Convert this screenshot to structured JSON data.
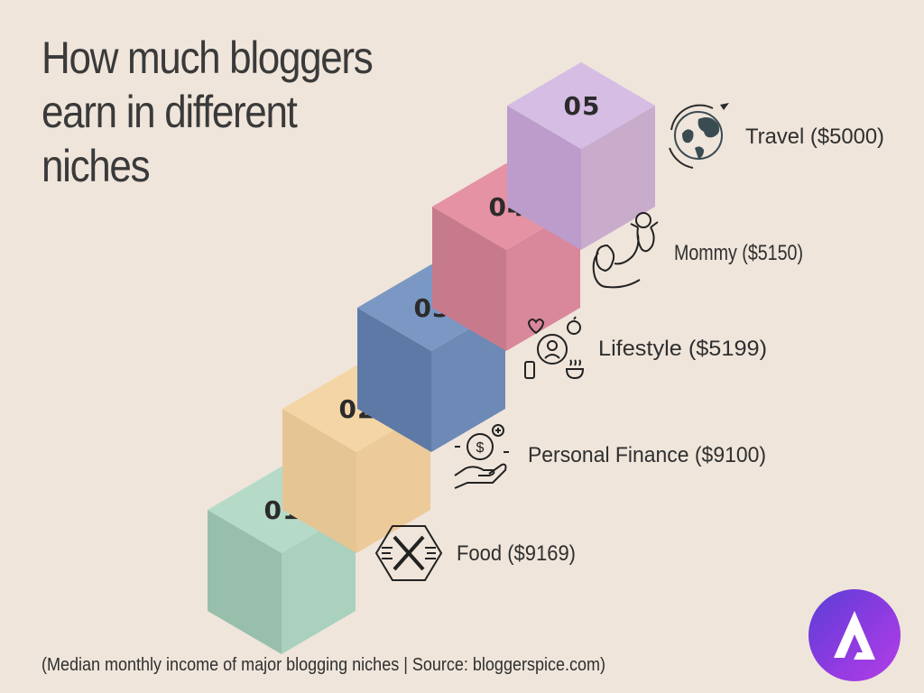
{
  "chart_data": {
    "type": "bar",
    "title": "How much bloggers earn in different niches",
    "categories": [
      "Food",
      "Personal Finance",
      "Lifestyle",
      "Mommy",
      "Travel"
    ],
    "step_numbers": [
      "01",
      "02",
      "03",
      "04",
      "05"
    ],
    "labels": [
      "Food ($9169)",
      "Personal Finance ($9100)",
      "Lifestyle ($5199)",
      "Mommy ($5150)",
      "Travel ($5000)"
    ],
    "values": [
      9169,
      9100,
      5199,
      5150,
      5000
    ],
    "colors": {
      "top": [
        "#b6dac8",
        "#f4d5a6",
        "#7b98c4",
        "#e592a4",
        "#d5bde4"
      ],
      "left": [
        "#98bfac",
        "#e6c594",
        "#5d7aa6",
        "#c77a8c",
        "#bc9ccb"
      ],
      "right": [
        "#a9d1be",
        "#ecca9a",
        "#6d8ab6",
        "#d9879b",
        "#c9accc"
      ]
    },
    "icons": [
      "fork-knife-icon",
      "money-hand-icon",
      "lifestyle-icon",
      "mother-child-icon",
      "globe-plane-icon"
    ]
  },
  "source": "(Median monthly income of major blogging niches | Source: bloggerspice.com)",
  "logo": {
    "icon": "astra-logo-icon"
  }
}
